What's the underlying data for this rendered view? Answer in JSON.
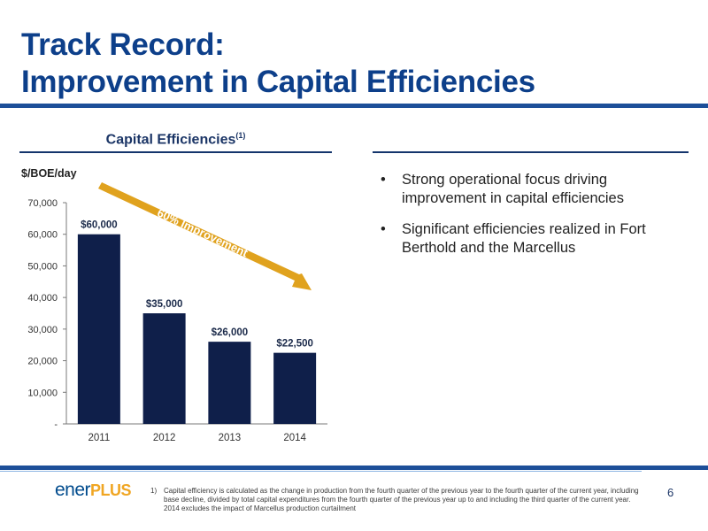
{
  "title": {
    "line1": "Track Record:",
    "line2": "Improvement in Capital Efficiencies"
  },
  "chart_header": {
    "label": "Capital Efficiencies",
    "superscript": "(1)"
  },
  "bullets": [
    "Strong operational focus driving improvement in capital efficiencies",
    "Significant efficiencies realized in Fort Berthold and the Marcellus"
  ],
  "bullet_char": "•",
  "arrow_label": "60% Improvement",
  "chart_data": {
    "type": "bar",
    "categories": [
      "2011",
      "2012",
      "2013",
      "2014"
    ],
    "values": [
      60000,
      35000,
      26000,
      22500
    ],
    "data_labels": [
      "$60,000",
      "$35,000",
      "$26,000",
      "$22,500"
    ],
    "ylabel": "$/BOE/day",
    "ylim": [
      0,
      70000
    ],
    "yticks": [
      0,
      10000,
      20000,
      30000,
      40000,
      50000,
      60000,
      70000
    ],
    "ytick_labels": [
      "-",
      "10,000",
      "20,000",
      "30,000",
      "40,000",
      "50,000",
      "60,000",
      "70,000"
    ],
    "grid": false,
    "legend": "none",
    "bar_color": "#0f1f4a",
    "arrow_color": "#e0a21e"
  },
  "footer": {
    "logo_part1": "ener",
    "logo_part2": "PLUS",
    "footnote_number": "1)",
    "footnote_text": "Capital efficiency is calculated as the change in production from the fourth quarter of the previous year to the fourth quarter of the current year, including base decline, divided by total capital expenditures from the fourth quarter of the previous year up to and including the third quarter of the current year. 2014 excludes the impact of Marcellus production curtailment",
    "page_number": "6"
  },
  "colors": {
    "title": "#0d3f8a",
    "rule": "#1d4f99",
    "logo_blue": "#004b8d",
    "logo_orange": "#f0a623"
  }
}
